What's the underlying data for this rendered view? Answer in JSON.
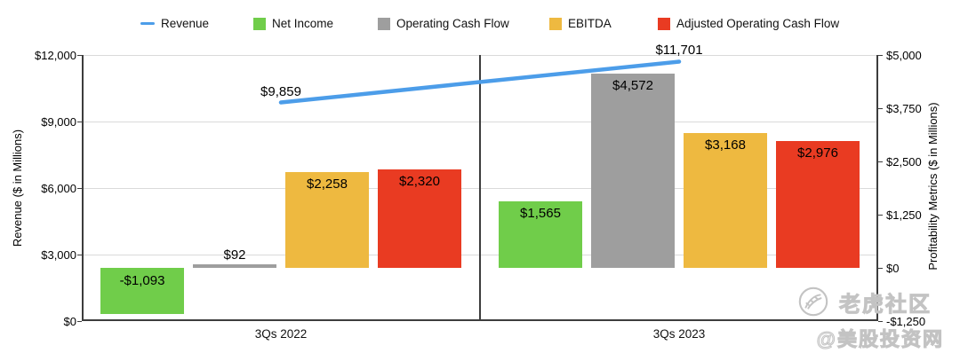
{
  "chart_data": {
    "type": "bar",
    "subtype": "grouped bars with line overlay, dual y-axes",
    "categories": [
      "3Qs 2022",
      "3Qs 2023"
    ],
    "series": [
      {
        "name": "Net Income",
        "color": "#70CD4A",
        "values": [
          -1093,
          1565
        ],
        "labels": [
          "-$1,093",
          "$1,565"
        ]
      },
      {
        "name": "Operating Cash Flow",
        "color": "#9E9E9E",
        "values": [
          92,
          4572
        ],
        "labels": [
          "$92",
          "$4,572"
        ]
      },
      {
        "name": "EBITDA",
        "color": "#EEB940",
        "values": [
          2258,
          3168
        ],
        "labels": [
          "$2,258",
          "$3,168"
        ]
      },
      {
        "name": "Adjusted Operating Cash Flow",
        "color": "#E93B22",
        "values": [
          2320,
          2976
        ],
        "labels": [
          "$2,320",
          "$2,976"
        ]
      }
    ],
    "line_series": {
      "name": "Revenue",
      "color": "#4C9DE9",
      "values": [
        9859,
        11701
      ],
      "labels": [
        "$9,859",
        "$11,701"
      ],
      "axis": "left"
    },
    "bars_axis": "right",
    "left_axis": {
      "title": "Revenue ($ in Millions)",
      "min": 0,
      "max": 12000,
      "tick_step": 3000,
      "tick_labels": [
        "$0",
        "$3,000",
        "$6,000",
        "$9,000",
        "$12,000"
      ]
    },
    "right_axis": {
      "title": "Profitability Metrics ($ in Millions)",
      "min": -1250,
      "max": 5000,
      "tick_step": 1250,
      "tick_labels": [
        "-$1,250",
        "$0",
        "$1,250",
        "$2,500",
        "$3,750",
        "$5,000"
      ]
    },
    "grid": "horizontal gridlines at left-axis ticks",
    "legend_position": "top"
  },
  "watermark": {
    "icon": "tiger-circle-icon",
    "brand": "老虎社区",
    "handle": "@美股投资网",
    "color": "#c3c3c3"
  }
}
